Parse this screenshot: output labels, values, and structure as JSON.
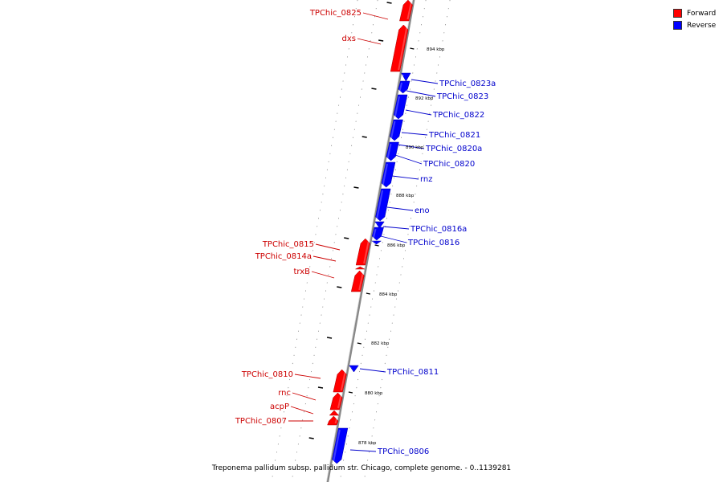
{
  "legend": [
    {
      "label": "Forward",
      "color": "#ff0000"
    },
    {
      "label": "Reverse",
      "color": "#0000ff"
    }
  ],
  "caption": "Treponema pallidum subsp. pallidum str. Chicago, complete genome. - 0..1139281",
  "colors": {
    "forward": "#ff0000",
    "reverse": "#0000ff",
    "backbone": "#888888"
  },
  "scale_labels": [
    "894 kbp",
    "892 kbp",
    "890 kbp",
    "888 kbp",
    "886 kbp",
    "884 kbp",
    "882 kbp",
    "880 kbp",
    "878 kbp"
  ],
  "genes": [
    {
      "name": "TPChic_0825",
      "strand": "forward"
    },
    {
      "name": "dxs",
      "strand": "forward"
    },
    {
      "name": "TPChic_0823a",
      "strand": "reverse"
    },
    {
      "name": "TPChic_0823",
      "strand": "reverse"
    },
    {
      "name": "TPChic_0822",
      "strand": "reverse"
    },
    {
      "name": "TPChic_0821",
      "strand": "reverse"
    },
    {
      "name": "TPChic_0820a",
      "strand": "reverse"
    },
    {
      "name": "TPChic_0820",
      "strand": "reverse"
    },
    {
      "name": "rnz",
      "strand": "reverse"
    },
    {
      "name": "eno",
      "strand": "reverse"
    },
    {
      "name": "TPChic_0816a",
      "strand": "reverse"
    },
    {
      "name": "TPChic_0816",
      "strand": "reverse"
    },
    {
      "name": "TPChic_0815",
      "strand": "forward"
    },
    {
      "name": "TPChic_0814a",
      "strand": "forward"
    },
    {
      "name": "trxB",
      "strand": "forward"
    },
    {
      "name": "TPChic_0811",
      "strand": "reverse"
    },
    {
      "name": "TPChic_0810",
      "strand": "forward"
    },
    {
      "name": "rnc",
      "strand": "forward"
    },
    {
      "name": "acpP",
      "strand": "forward"
    },
    {
      "name": "TPChic_0807",
      "strand": "forward"
    },
    {
      "name": "TPChic_0806",
      "strand": "reverse"
    }
  ]
}
